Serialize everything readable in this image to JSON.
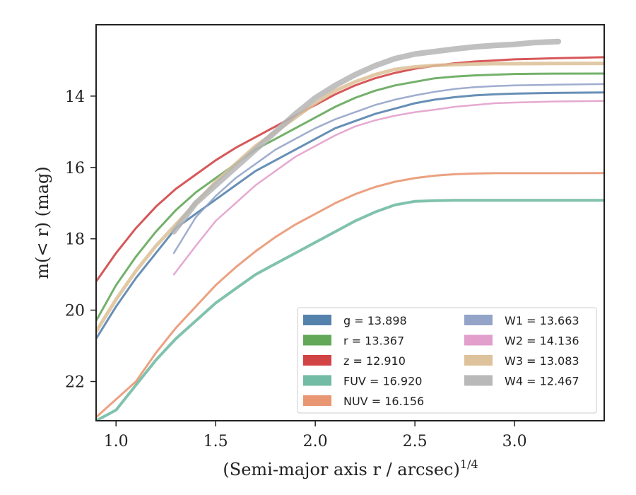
{
  "chart_data": {
    "type": "line",
    "xlabel": "(Semi-major axis r / arcsec)",
    "xlabel_sup": "1/4",
    "ylabel": "m(< r) (mag)",
    "xlim": [
      0.9,
      3.45
    ],
    "ylim": [
      23.1,
      12.0
    ],
    "y_inverted": true,
    "x_ticks": [
      1.0,
      1.5,
      2.0,
      2.5,
      3.0
    ],
    "x_tick_labels": [
      "1.0",
      "1.5",
      "2.0",
      "2.5",
      "3.0"
    ],
    "y_ticks": [
      14,
      16,
      18,
      20,
      22
    ],
    "y_tick_labels": [
      "14",
      "16",
      "18",
      "20",
      "22"
    ],
    "grid": false,
    "legend_placement": "bottom-right",
    "series": [
      {
        "name": "g",
        "legend": "g = 13.898",
        "color": "#4c7ba9",
        "width": 3,
        "x": [
          0.9,
          1.0,
          1.1,
          1.2,
          1.3,
          1.4,
          1.5,
          1.6,
          1.7,
          1.8,
          1.9,
          2.0,
          2.1,
          2.2,
          2.3,
          2.4,
          2.5,
          2.6,
          2.7,
          2.8,
          2.9,
          3.0,
          3.2,
          3.45
        ],
        "y": [
          20.8,
          19.9,
          19.1,
          18.4,
          17.7,
          17.3,
          16.9,
          16.5,
          16.1,
          15.8,
          15.5,
          15.2,
          14.9,
          14.7,
          14.5,
          14.35,
          14.2,
          14.1,
          14.03,
          13.98,
          13.95,
          13.93,
          13.91,
          13.898
        ]
      },
      {
        "name": "r",
        "legend": "r = 13.367",
        "color": "#5ba350",
        "width": 3,
        "x": [
          0.9,
          1.0,
          1.1,
          1.2,
          1.3,
          1.4,
          1.5,
          1.6,
          1.7,
          1.8,
          1.9,
          2.0,
          2.1,
          2.2,
          2.3,
          2.4,
          2.5,
          2.6,
          2.7,
          2.8,
          2.9,
          3.0,
          3.2,
          3.45
        ],
        "y": [
          20.3,
          19.3,
          18.5,
          17.8,
          17.2,
          16.7,
          16.3,
          15.9,
          15.5,
          15.2,
          14.9,
          14.6,
          14.3,
          14.05,
          13.85,
          13.7,
          13.6,
          13.5,
          13.45,
          13.42,
          13.4,
          13.38,
          13.37,
          13.367
        ]
      },
      {
        "name": "z",
        "legend": "z = 12.910",
        "color": "#d0393b",
        "width": 3,
        "x": [
          0.9,
          1.0,
          1.1,
          1.2,
          1.3,
          1.4,
          1.5,
          1.6,
          1.7,
          1.8,
          1.9,
          2.0,
          2.1,
          2.2,
          2.3,
          2.4,
          2.5,
          2.6,
          2.7,
          2.8,
          2.9,
          3.0,
          3.2,
          3.45
        ],
        "y": [
          19.2,
          18.4,
          17.7,
          17.1,
          16.6,
          16.2,
          15.8,
          15.45,
          15.15,
          14.85,
          14.55,
          14.25,
          13.95,
          13.7,
          13.5,
          13.35,
          13.23,
          13.15,
          13.08,
          13.03,
          13.0,
          12.97,
          12.94,
          12.91
        ]
      },
      {
        "name": "FUV",
        "legend": "FUV = 16.920",
        "color": "#6ab7a0",
        "width": 4,
        "x": [
          0.9,
          1.0,
          1.1,
          1.2,
          1.3,
          1.4,
          1.5,
          1.6,
          1.7,
          1.8,
          1.9,
          2.0,
          2.1,
          2.2,
          2.3,
          2.4,
          2.5,
          2.6,
          2.7,
          2.8,
          2.9,
          3.0,
          3.2,
          3.45
        ],
        "y": [
          23.1,
          22.8,
          22.1,
          21.4,
          20.8,
          20.3,
          19.8,
          19.4,
          19.0,
          18.7,
          18.4,
          18.1,
          17.8,
          17.5,
          17.25,
          17.05,
          16.95,
          16.93,
          16.92,
          16.92,
          16.92,
          16.92,
          16.92,
          16.92
        ]
      },
      {
        "name": "NUV",
        "legend": "NUV = 16.156",
        "color": "#e8916b",
        "width": 3,
        "x": [
          0.9,
          1.0,
          1.1,
          1.2,
          1.3,
          1.4,
          1.5,
          1.6,
          1.7,
          1.8,
          1.9,
          2.0,
          2.1,
          2.2,
          2.3,
          2.4,
          2.5,
          2.6,
          2.7,
          2.8,
          2.9,
          3.0,
          3.2,
          3.45
        ],
        "y": [
          23.0,
          22.5,
          22.0,
          21.2,
          20.5,
          19.9,
          19.3,
          18.8,
          18.35,
          17.95,
          17.6,
          17.3,
          17.0,
          16.75,
          16.55,
          16.4,
          16.3,
          16.23,
          16.19,
          16.17,
          16.16,
          16.16,
          16.16,
          16.156
        ]
      },
      {
        "name": "W1",
        "legend": "W1 = 13.663",
        "color": "#8e9fc6",
        "width": 2.5,
        "x": [
          1.29,
          1.4,
          1.5,
          1.6,
          1.7,
          1.8,
          1.9,
          2.0,
          2.1,
          2.2,
          2.3,
          2.4,
          2.5,
          2.6,
          2.7,
          2.8,
          2.9,
          3.0,
          3.2,
          3.45
        ],
        "y": [
          18.4,
          17.4,
          16.8,
          16.3,
          15.9,
          15.5,
          15.2,
          14.9,
          14.65,
          14.45,
          14.25,
          14.1,
          13.98,
          13.88,
          13.8,
          13.75,
          13.72,
          13.7,
          13.68,
          13.663
        ]
      },
      {
        "name": "W2",
        "legend": "W2 = 14.136",
        "color": "#e09ac8",
        "width": 2.5,
        "x": [
          1.29,
          1.4,
          1.5,
          1.6,
          1.7,
          1.8,
          1.9,
          2.0,
          2.1,
          2.2,
          2.3,
          2.4,
          2.5,
          2.6,
          2.7,
          2.8,
          2.9,
          3.0,
          3.2,
          3.45
        ],
        "y": [
          19.0,
          18.2,
          17.5,
          17.0,
          16.5,
          16.1,
          15.7,
          15.4,
          15.1,
          14.85,
          14.68,
          14.55,
          14.45,
          14.38,
          14.3,
          14.25,
          14.2,
          14.18,
          14.15,
          14.136
        ]
      },
      {
        "name": "W3",
        "legend": "W3 = 13.083",
        "color": "#dcbf96",
        "width": 5,
        "x": [
          0.9,
          1.0,
          1.1,
          1.2,
          1.3,
          1.4,
          1.5,
          1.6,
          1.7,
          1.8,
          1.9,
          2.0,
          2.1,
          2.2,
          2.3,
          2.4,
          2.5,
          2.6,
          2.7,
          2.8,
          2.9,
          3.0,
          3.2,
          3.45
        ],
        "y": [
          20.6,
          19.7,
          18.9,
          18.2,
          17.6,
          17.0,
          16.4,
          15.9,
          15.4,
          15.0,
          14.6,
          14.2,
          13.85,
          13.6,
          13.4,
          13.25,
          13.18,
          13.14,
          13.12,
          13.1,
          13.09,
          13.09,
          13.085,
          13.083
        ]
      },
      {
        "name": "W4",
        "legend": "W4 = 12.467",
        "color": "#b5b5b5",
        "width": 8,
        "x": [
          1.29,
          1.4,
          1.5,
          1.6,
          1.7,
          1.8,
          1.9,
          2.0,
          2.1,
          2.2,
          2.3,
          2.4,
          2.5,
          2.6,
          2.7,
          2.8,
          2.9,
          3.0,
          3.1,
          3.22
        ],
        "y": [
          17.8,
          17.0,
          16.5,
          16.0,
          15.5,
          15.0,
          14.5,
          14.05,
          13.7,
          13.4,
          13.15,
          12.95,
          12.82,
          12.75,
          12.68,
          12.62,
          12.58,
          12.55,
          12.5,
          12.47
        ]
      }
    ]
  }
}
